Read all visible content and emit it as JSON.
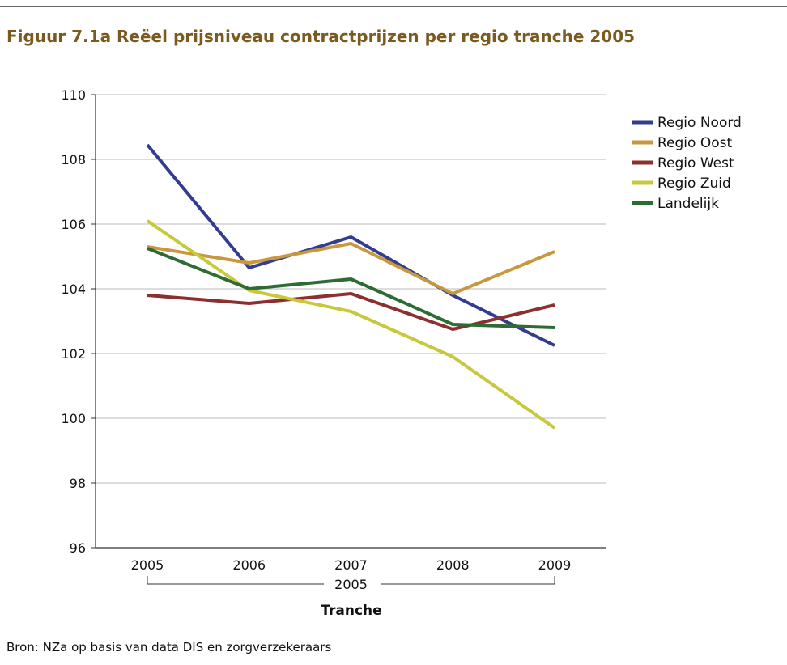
{
  "chart_data": {
    "type": "line",
    "title": "Figuur 7.1a Reëel prijsniveau contractprijzen per regio tranche 2005",
    "categories": [
      "2005",
      "2006",
      "2007",
      "2008",
      "2009"
    ],
    "x_group_label": "2005",
    "x_label": "Tranche",
    "source": "Bron: NZa op basis van data DIS  en zorgverzekeraars",
    "ylim": [
      96,
      110
    ],
    "yticks": [
      96,
      98,
      100,
      102,
      104,
      106,
      108,
      110
    ],
    "grid": true,
    "legend": "right",
    "series": [
      {
        "name": "Regio Noord",
        "color": "#333c8f",
        "values": [
          108.45,
          104.65,
          105.6,
          103.8,
          102.25
        ]
      },
      {
        "name": "Regio Oost",
        "color": "#c9973e",
        "values": [
          105.3,
          104.8,
          105.4,
          103.85,
          105.15
        ]
      },
      {
        "name": "Regio West",
        "color": "#8b2f2f",
        "values": [
          103.8,
          103.55,
          103.85,
          102.75,
          103.5
        ]
      },
      {
        "name": "Regio Zuid",
        "color": "#c8c83c",
        "values": [
          106.1,
          103.95,
          103.3,
          101.9,
          99.7
        ]
      },
      {
        "name": "Landelijk",
        "color": "#2e6b35",
        "values": [
          105.25,
          104.0,
          104.3,
          102.9,
          102.8
        ]
      }
    ]
  }
}
